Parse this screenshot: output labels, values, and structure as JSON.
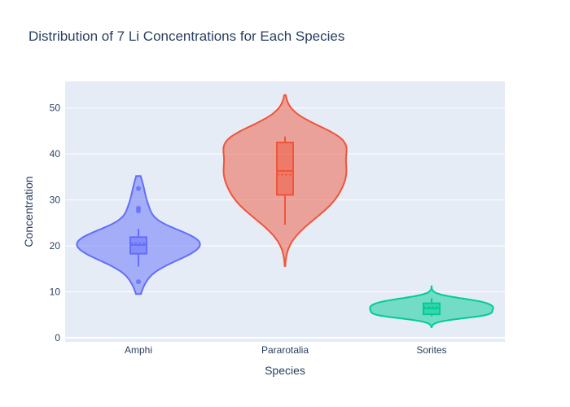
{
  "chart_data": {
    "type": "violin",
    "title": "Distribution of 7  Li  Concentrations for Each Species",
    "xlabel": "Species",
    "ylabel": "Concentration",
    "ylim": [
      -0.9,
      55.8
    ],
    "yticks": [
      0,
      10,
      20,
      30,
      40,
      50
    ],
    "grid": true,
    "legend": "none",
    "categories": [
      "Amphi",
      "Pararotalia",
      "Sorites"
    ],
    "series": [
      {
        "category": "Amphi",
        "color": "#636efa",
        "violin_range": [
          9.5,
          35.2
        ],
        "box": {
          "min": 15.5,
          "q1": 18.3,
          "median": 20.2,
          "q3": 21.9,
          "max": 23.7
        },
        "mean": 20.6,
        "outliers": [
          12.2,
          27.6,
          28.2,
          32.5
        ]
      },
      {
        "category": "Pararotalia",
        "color": "#ef553b",
        "violin_range": [
          15.6,
          52.8
        ],
        "box": {
          "min": 24.6,
          "q1": 31.1,
          "median": 36.3,
          "q3": 42.5,
          "max": 43.8
        },
        "mean": 35.5,
        "outliers": []
      },
      {
        "category": "Sorites",
        "color": "#00cc96",
        "violin_range": [
          2.3,
          11.2
        ],
        "box": {
          "min": 4.7,
          "q1": 5.1,
          "median": 6.4,
          "q3": 7.5,
          "max": 8.6
        },
        "mean": 6.7,
        "outliers": []
      }
    ]
  }
}
